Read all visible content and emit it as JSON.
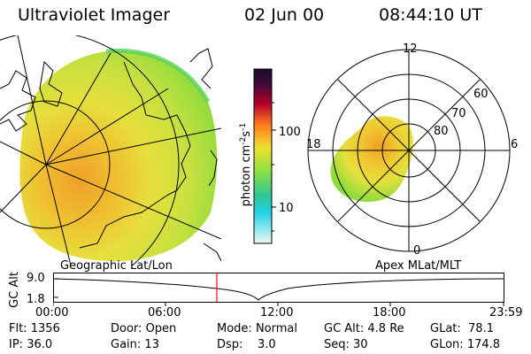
{
  "header": {
    "instrument": "Ultraviolet Imager",
    "date": "02 Jun 00",
    "time": "08:44:10 UT"
  },
  "colorbar": {
    "unit_label": "photon cm",
    "unit_exp1": "-2",
    "unit_s": "s",
    "unit_exp2": "-1",
    "tick_100": "100",
    "tick_10": "10"
  },
  "polar_plot": {
    "mlt_top": "12",
    "mlt_left": "18",
    "mlt_right": "6",
    "mlt_bottom": "0",
    "lat_60": "60",
    "lat_70": "70",
    "lat_80": "80"
  },
  "timeline": {
    "left_label": "Geographic Lat/Lon",
    "right_label": "Apex MLat/MLT",
    "y_axis_label": "GC Alt",
    "y_tick_top": "9.0",
    "y_tick_bottom": "1.8",
    "x_ticks": [
      "00:00",
      "06:00",
      "12:00",
      "18:00",
      "23:59"
    ]
  },
  "status": {
    "flt_label": "Flt:",
    "flt_value": "1356",
    "ip_label": "IP:",
    "ip_value": "36.0",
    "door_label": "Door:",
    "door_value": "Open",
    "gain_label": "Gain:",
    "gain_value": "13",
    "mode_label": "Mode:",
    "mode_value": "Normal",
    "dsp_label": "Dsp:",
    "dsp_value": "3.0",
    "gcalt_label": "GC Alt:",
    "gcalt_value": "4.8 Re",
    "seq_label": "Seq:",
    "seq_value": "30",
    "glat_label": "GLat:",
    "glat_value": "78.1",
    "glon_label": "GLon:",
    "glon_value": "174.8"
  },
  "colors": {
    "current_time_marker": "#ff0000",
    "image_green": "#8fdc3c",
    "image_yellow": "#e6e63c",
    "image_orange": "#f0a028"
  }
}
